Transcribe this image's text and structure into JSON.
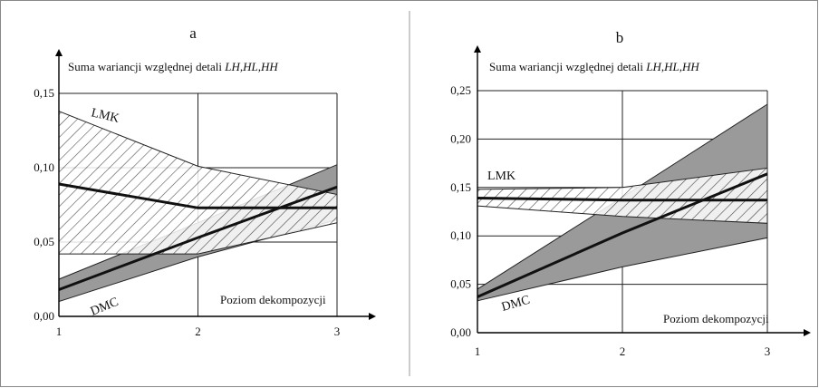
{
  "chart_data": [
    {
      "type": "line",
      "panel_label": "a",
      "ylabel_prefix": "Suma wariancji względnej detali ",
      "ylabel_italic": "LH,HL,HH",
      "xlabel": "Poziom dekompozycji",
      "x": [
        1,
        2,
        3
      ],
      "xtick_labels": [
        "1",
        "2",
        "3"
      ],
      "ylim": [
        0,
        0.15
      ],
      "yticks": [
        0.0,
        0.05,
        0.1,
        0.15
      ],
      "ytick_labels": [
        "0,00",
        "0,05",
        "0,10",
        "0,15"
      ],
      "grid": true,
      "series": [
        {
          "name": "LMK",
          "mean": [
            0.089,
            0.073,
            0.073
          ],
          "band_upper": [
            0.138,
            0.101,
            0.082
          ],
          "band_lower": [
            0.042,
            0.042,
            0.063
          ],
          "band_fill": "hatched"
        },
        {
          "name": "DMC",
          "mean": [
            0.018,
            0.053,
            0.087
          ],
          "band_upper": [
            0.025,
            0.063,
            0.102
          ],
          "band_lower": [
            0.01,
            0.04,
            0.065
          ],
          "band_fill": "gray"
        }
      ]
    },
    {
      "type": "line",
      "panel_label": "b",
      "ylabel_prefix": "Suma wariancji względnej detali ",
      "ylabel_italic": "LH,HL,HH",
      "xlabel": "Poziom dekompozycji",
      "x": [
        1,
        2,
        3
      ],
      "xtick_labels": [
        "1",
        "2",
        "3"
      ],
      "ylim": [
        0,
        0.25
      ],
      "yticks": [
        0.0,
        0.05,
        0.1,
        0.15,
        0.2,
        0.25
      ],
      "ytick_labels": [
        "0,00",
        "0,05",
        "0,10",
        "0,15",
        "0,20",
        "0,25"
      ],
      "grid": true,
      "series": [
        {
          "name": "LMK",
          "mean": [
            0.139,
            0.137,
            0.137
          ],
          "band_upper": [
            0.148,
            0.15,
            0.17
          ],
          "band_lower": [
            0.131,
            0.12,
            0.113
          ],
          "band_fill": "hatched"
        },
        {
          "name": "DMC",
          "mean": [
            0.037,
            0.103,
            0.164
          ],
          "band_upper": [
            0.045,
            0.14,
            0.236
          ],
          "band_lower": [
            0.033,
            0.068,
            0.098
          ],
          "band_fill": "gray"
        }
      ]
    }
  ],
  "colors": {
    "band_gray": "#9a9a9a",
    "line": "#111111",
    "grid": "#222222",
    "hatch": "#333333"
  }
}
